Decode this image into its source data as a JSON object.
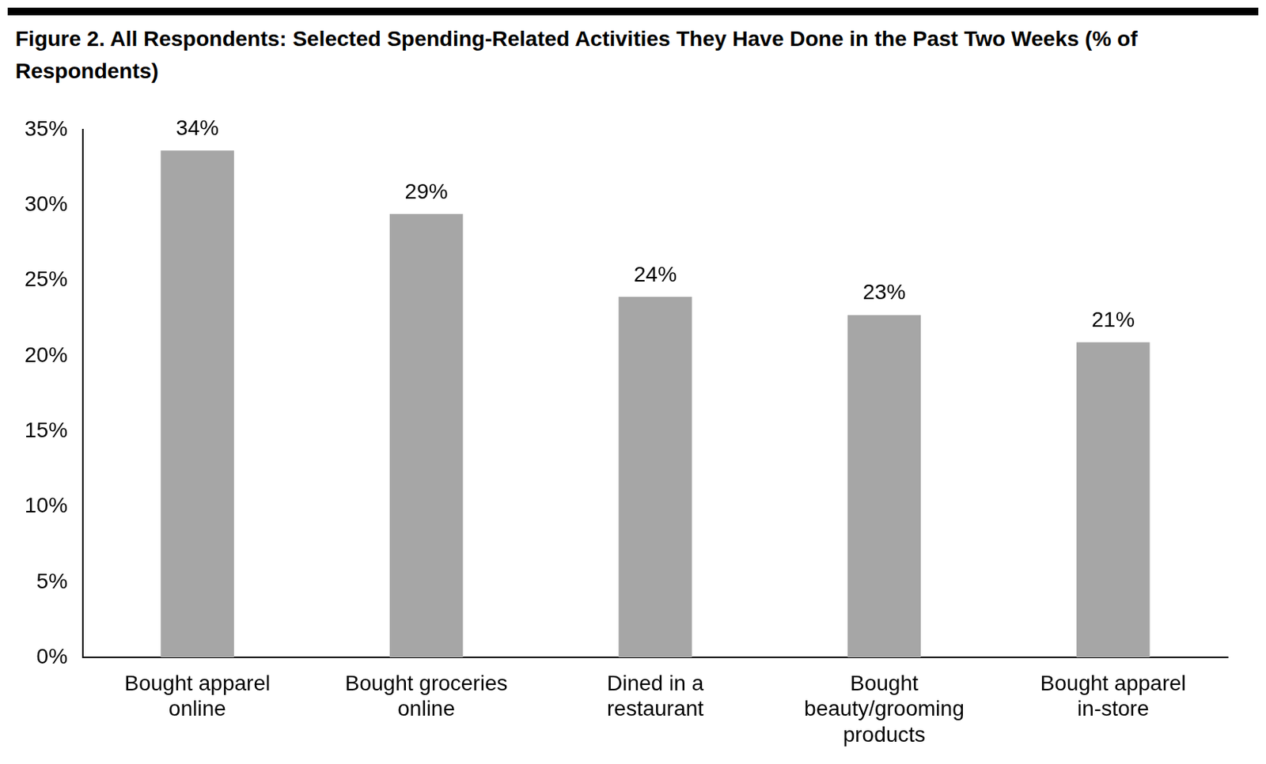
{
  "chart_data": {
    "type": "bar",
    "title": "Figure 2. All Respondents: Selected Spending-Related Activities They Have Done in the Past Two Weeks (% of Respondents)",
    "categories": [
      "Bought apparel online",
      "Bought groceries online",
      "Dined in a restaurant",
      "Bought beauty/grooming products",
      "Bought apparel in-store"
    ],
    "values": [
      33.6,
      29.4,
      23.9,
      22.7,
      20.9
    ],
    "value_labels": [
      "34%",
      "29%",
      "24%",
      "23%",
      "21%"
    ],
    "data_labels": true,
    "color": "#a6a6a6",
    "ylim": [
      0,
      35
    ],
    "yticks": [
      {
        "value": 0,
        "label": "0%"
      },
      {
        "value": 5,
        "label": "5%"
      },
      {
        "value": 10,
        "label": "10%"
      },
      {
        "value": 15,
        "label": "15%"
      },
      {
        "value": 20,
        "label": "20%"
      },
      {
        "value": 25,
        "label": "25%"
      },
      {
        "value": 30,
        "label": "30%"
      },
      {
        "value": 35,
        "label": "35%"
      }
    ],
    "grid": false
  }
}
